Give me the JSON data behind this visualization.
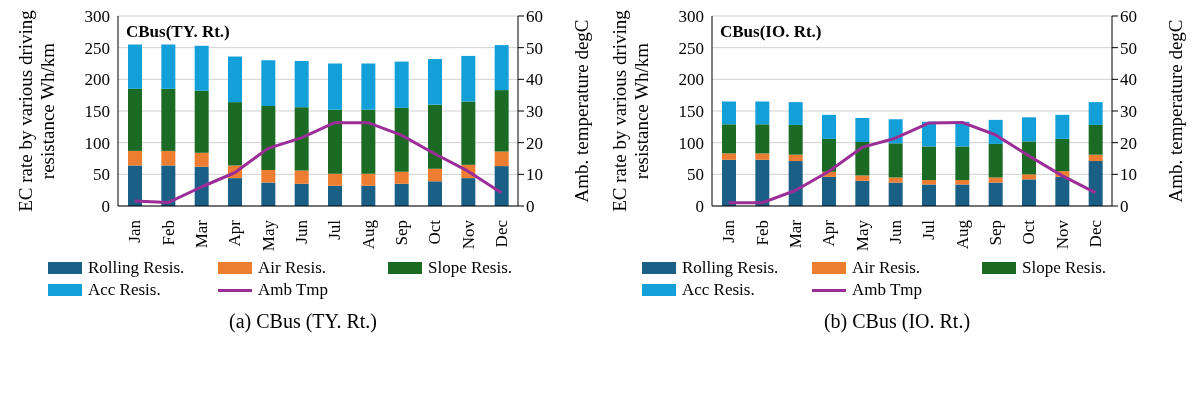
{
  "chart_data": [
    {
      "type": "bar",
      "title": "CBus(TY. Rt.)",
      "ylabel": "EC rate by various driving resistance Wh/km",
      "y2label": "Amb. temperature degC",
      "annotations": [
        "(a)  CBus (TY. Rt.)"
      ],
      "categories": [
        "Jan",
        "Feb",
        "Mar",
        "Apr",
        "May",
        "Jun",
        "Jul",
        "Aug",
        "Sep",
        "Oct",
        "Nov",
        "Dec"
      ],
      "stacked": true,
      "ylim": [
        0,
        300
      ],
      "yticks": [
        0,
        50,
        100,
        150,
        200,
        250,
        300
      ],
      "y2lim": [
        0,
        60
      ],
      "y2ticks": [
        0,
        10,
        20,
        30,
        40,
        50,
        60
      ],
      "grid": "y",
      "legend": "bottom",
      "series": [
        {
          "name": "Rolling Resis.",
          "color": "#1a5f85",
          "values": [
            64,
            64,
            62,
            44,
            37,
            35,
            32,
            32,
            35,
            39,
            44,
            63
          ]
        },
        {
          "name": "Air Resis.",
          "color": "#ed7d31",
          "values": [
            23,
            23,
            22,
            20,
            20,
            21,
            19,
            19,
            19,
            20,
            21,
            23
          ]
        },
        {
          "name": "Slope Resis.",
          "color": "#1b6b25",
          "values": [
            98,
            98,
            98,
            100,
            101,
            100,
            101,
            101,
            101,
            101,
            100,
            97
          ]
        },
        {
          "name": "Acc Resis.",
          "color": "#13a0d8",
          "values": [
            70,
            70,
            71,
            72,
            72,
            73,
            73,
            73,
            73,
            72,
            72,
            71
          ]
        },
        {
          "name": "Amb Tmp",
          "color": "#9b2e96",
          "type": "line",
          "axis": "y2",
          "values": [
            1.6,
            1.1,
            6,
            10.5,
            18.2,
            21.5,
            26.3,
            26.3,
            22.4,
            16.5,
            11,
            4.2
          ]
        }
      ]
    },
    {
      "type": "bar",
      "title": "CBus(IO. Rt.)",
      "ylabel": "EC rate by various driving resistance Wh/km",
      "y2label": "Amb. temperature degC",
      "annotations": [
        "(b)  CBus (IO. Rt.)"
      ],
      "categories": [
        "Jan",
        "Feb",
        "Mar",
        "Apr",
        "May",
        "Jun",
        "Jul",
        "Aug",
        "Sep",
        "Oct",
        "Nov",
        "Dec"
      ],
      "stacked": true,
      "ylim": [
        0,
        300
      ],
      "yticks": [
        0,
        50,
        100,
        150,
        200,
        250,
        300
      ],
      "y2lim": [
        0,
        60
      ],
      "y2ticks": [
        0,
        10,
        20,
        30,
        40,
        50,
        60
      ],
      "grid": "y",
      "legend": "bottom",
      "series": [
        {
          "name": "Rolling Resis.",
          "color": "#1a5f85",
          "values": [
            73,
            73,
            71,
            46,
            40,
            37,
            34,
            34,
            37,
            42,
            46,
            71
          ]
        },
        {
          "name": "Air Resis.",
          "color": "#ed7d31",
          "values": [
            10,
            10,
            10,
            8,
            8,
            8,
            7,
            7,
            8,
            8,
            9,
            10
          ]
        },
        {
          "name": "Slope Resis.",
          "color": "#1b6b25",
          "values": [
            46,
            46,
            47,
            52,
            53,
            54,
            53,
            53,
            53,
            52,
            51,
            47
          ]
        },
        {
          "name": "Acc Resis.",
          "color": "#13a0d8",
          "values": [
            36,
            36,
            36,
            38,
            38,
            38,
            39,
            39,
            38,
            38,
            38,
            36
          ]
        },
        {
          "name": "Amb Tmp",
          "color": "#9b2e96",
          "type": "line",
          "axis": "y2",
          "values": [
            1,
            1,
            4.9,
            10.9,
            18.5,
            21.4,
            26.2,
            26.4,
            22.5,
            15.9,
            9.6,
            4.2
          ]
        }
      ]
    }
  ]
}
